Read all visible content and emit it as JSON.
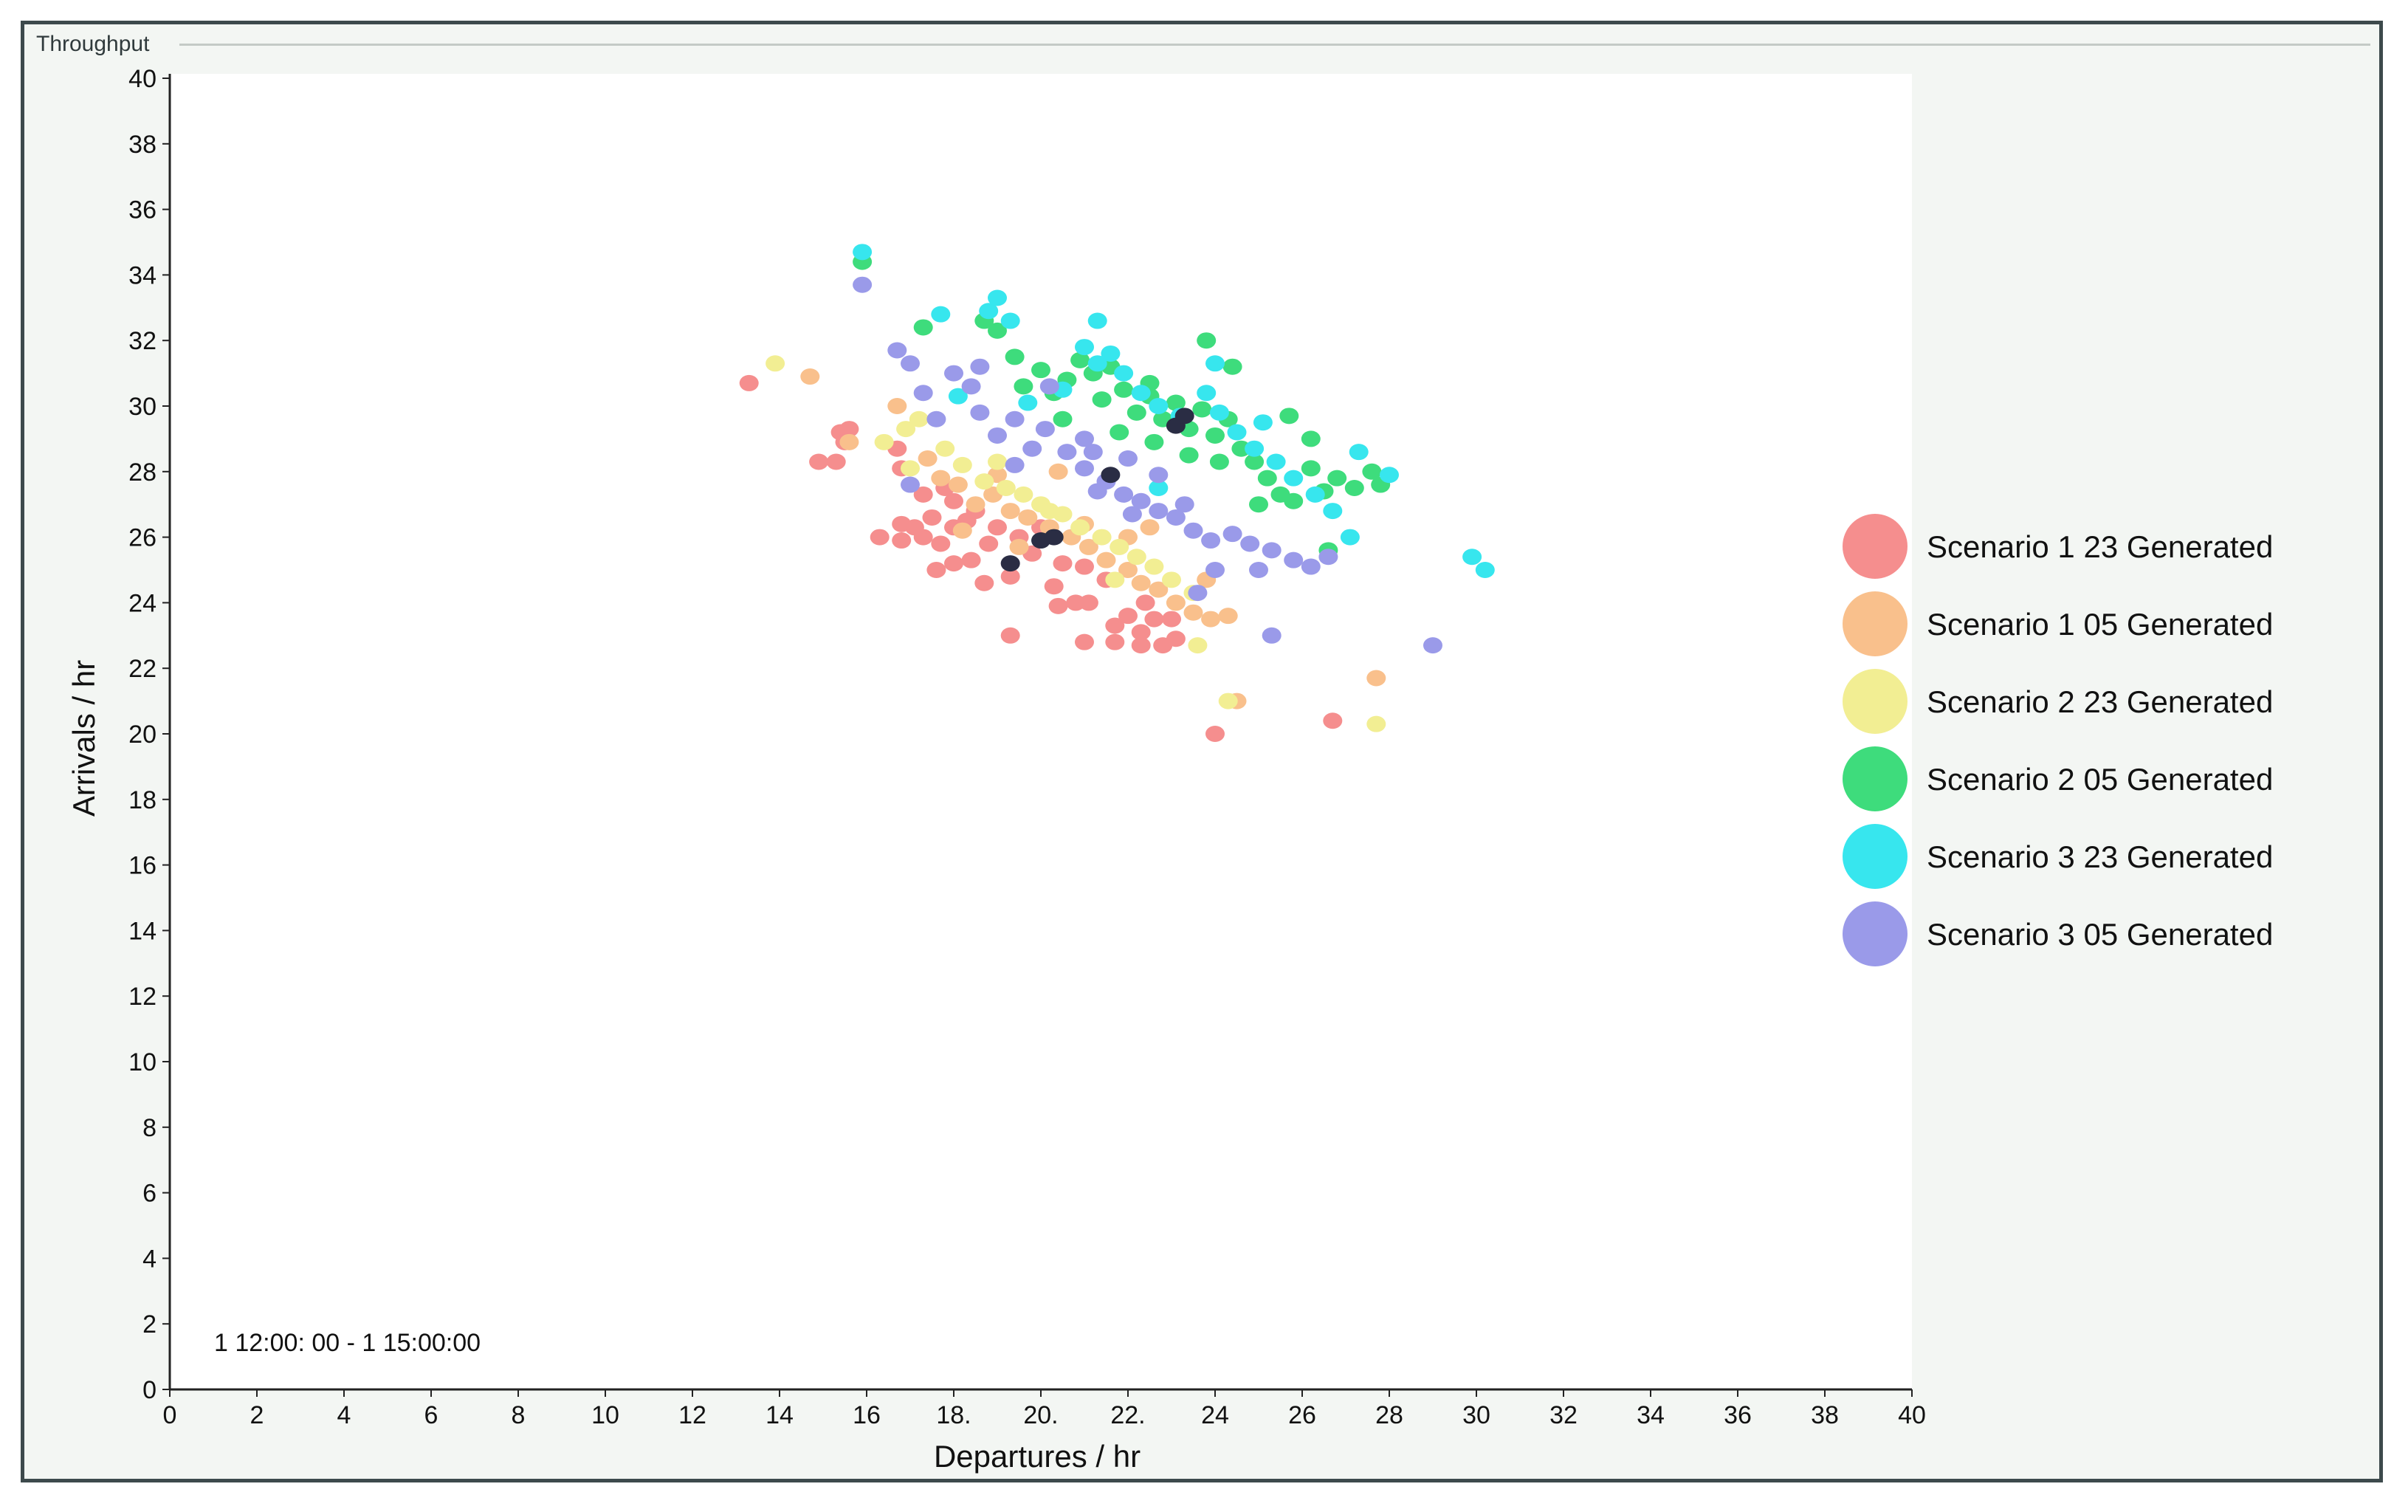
{
  "panel": {
    "title": "Throughput"
  },
  "chart_data": {
    "type": "scatter",
    "xlabel": "Departures / hr",
    "ylabel": "Arrivals / hr",
    "xlim": [
      0,
      40
    ],
    "ylim": [
      0,
      40
    ],
    "xticks": [
      0,
      2,
      4,
      6,
      8,
      10,
      12,
      14,
      16,
      18,
      20,
      22,
      24,
      26,
      28,
      30,
      32,
      34,
      36,
      38,
      40
    ],
    "xtick_labels": [
      "0",
      "2",
      "4",
      "6",
      "8",
      "10",
      "12",
      "14",
      "16",
      "18.",
      "20.",
      "22.",
      "24",
      "26",
      "28",
      "30",
      "32",
      "34",
      "36",
      "38",
      "40"
    ],
    "yticks": [
      0,
      2,
      4,
      6,
      8,
      10,
      12,
      14,
      16,
      18,
      20,
      22,
      24,
      26,
      28,
      30,
      32,
      34,
      36,
      38,
      40
    ],
    "time_range_label": "1 12:00: 00 - 1 15:00:00",
    "legend_position": "right",
    "grid": false,
    "series": [
      {
        "name": "Scenario 1 23 Generated",
        "color": "#f58e8e",
        "points": [
          [
            13.3,
            30.7
          ],
          [
            14.9,
            28.3
          ],
          [
            15.3,
            28.3
          ],
          [
            15.4,
            29.2
          ],
          [
            15.5,
            28.9
          ],
          [
            15.6,
            29.3
          ],
          [
            16.7,
            28.7
          ],
          [
            16.8,
            28.1
          ],
          [
            17.3,
            27.3
          ],
          [
            17.5,
            26.6
          ],
          [
            17.1,
            26.3
          ],
          [
            16.8,
            26.4
          ],
          [
            16.3,
            26.0
          ],
          [
            16.8,
            25.9
          ],
          [
            17.3,
            26.0
          ],
          [
            17.7,
            25.8
          ],
          [
            18.0,
            26.3
          ],
          [
            18.3,
            26.5
          ],
          [
            17.6,
            25.0
          ],
          [
            18.0,
            25.2
          ],
          [
            18.4,
            25.3
          ],
          [
            18.8,
            25.8
          ],
          [
            19.3,
            24.8
          ],
          [
            19.8,
            25.5
          ],
          [
            20.3,
            24.5
          ],
          [
            20.8,
            24.0
          ],
          [
            20.4,
            23.9
          ],
          [
            21.1,
            24.0
          ],
          [
            21.5,
            24.7
          ],
          [
            21.7,
            23.3
          ],
          [
            22.0,
            23.6
          ],
          [
            22.3,
            23.1
          ],
          [
            21.7,
            22.8
          ],
          [
            22.3,
            22.7
          ],
          [
            22.8,
            22.7
          ],
          [
            23.1,
            22.9
          ],
          [
            23.0,
            23.5
          ],
          [
            22.6,
            23.5
          ],
          [
            19.3,
            23.0
          ],
          [
            21.0,
            22.8
          ],
          [
            18.5,
            26.8
          ],
          [
            19.0,
            26.3
          ],
          [
            19.5,
            26.0
          ],
          [
            20.5,
            25.2
          ],
          [
            21.0,
            25.1
          ],
          [
            18.0,
            27.1
          ],
          [
            17.8,
            27.5
          ],
          [
            18.7,
            24.6
          ],
          [
            20.0,
            26.3
          ],
          [
            22.4,
            24.0
          ],
          [
            24.0,
            20.0
          ],
          [
            26.7,
            20.4
          ]
        ]
      },
      {
        "name": "Scenario 1 05 Generated",
        "color": "#f9c08c",
        "points": [
          [
            14.7,
            30.9
          ],
          [
            15.6,
            28.9
          ],
          [
            16.7,
            30.0
          ],
          [
            17.4,
            28.4
          ],
          [
            17.7,
            27.8
          ],
          [
            18.1,
            27.6
          ],
          [
            18.5,
            27.0
          ],
          [
            18.9,
            27.3
          ],
          [
            19.3,
            26.8
          ],
          [
            19.7,
            26.6
          ],
          [
            20.2,
            26.3
          ],
          [
            20.7,
            26.0
          ],
          [
            21.1,
            25.7
          ],
          [
            21.5,
            25.3
          ],
          [
            22.0,
            25.0
          ],
          [
            22.3,
            24.6
          ],
          [
            22.7,
            24.4
          ],
          [
            23.1,
            24.0
          ],
          [
            23.5,
            23.7
          ],
          [
            23.9,
            23.5
          ],
          [
            24.3,
            23.6
          ],
          [
            24.5,
            21.0
          ],
          [
            23.8,
            24.7
          ],
          [
            20.4,
            28.0
          ],
          [
            19.0,
            27.9
          ],
          [
            18.2,
            26.2
          ],
          [
            19.5,
            25.7
          ],
          [
            22.0,
            26.0
          ],
          [
            22.5,
            26.3
          ],
          [
            21.0,
            26.4
          ],
          [
            27.7,
            21.7
          ]
        ]
      },
      {
        "name": "Scenario 2 23 Generated",
        "color": "#f2ee93",
        "points": [
          [
            13.9,
            31.3
          ],
          [
            16.4,
            28.9
          ],
          [
            16.9,
            29.3
          ],
          [
            17.2,
            29.6
          ],
          [
            17.8,
            28.7
          ],
          [
            18.2,
            28.2
          ],
          [
            18.7,
            27.7
          ],
          [
            19.2,
            27.5
          ],
          [
            19.6,
            27.3
          ],
          [
            20.0,
            27.0
          ],
          [
            20.5,
            26.7
          ],
          [
            20.9,
            26.3
          ],
          [
            21.4,
            26.0
          ],
          [
            21.8,
            25.7
          ],
          [
            22.2,
            25.4
          ],
          [
            22.6,
            25.1
          ],
          [
            23.0,
            24.7
          ],
          [
            23.5,
            24.3
          ],
          [
            23.6,
            22.7
          ],
          [
            24.3,
            21.0
          ],
          [
            17.0,
            28.1
          ],
          [
            20.2,
            26.8
          ],
          [
            21.7,
            24.7
          ],
          [
            19.0,
            28.3
          ],
          [
            27.7,
            20.3
          ]
        ]
      },
      {
        "name": "Scenario 2 05 Generated",
        "color": "#3edc7c",
        "points": [
          [
            15.9,
            34.4
          ],
          [
            17.3,
            32.4
          ],
          [
            18.7,
            32.6
          ],
          [
            19.0,
            32.3
          ],
          [
            19.4,
            31.5
          ],
          [
            19.6,
            30.6
          ],
          [
            20.0,
            31.1
          ],
          [
            20.3,
            30.4
          ],
          [
            20.6,
            30.8
          ],
          [
            20.9,
            31.4
          ],
          [
            21.2,
            31.0
          ],
          [
            21.4,
            30.2
          ],
          [
            21.6,
            31.2
          ],
          [
            21.9,
            30.5
          ],
          [
            22.2,
            29.8
          ],
          [
            22.5,
            30.3
          ],
          [
            22.8,
            29.6
          ],
          [
            23.1,
            30.1
          ],
          [
            23.4,
            29.3
          ],
          [
            23.7,
            29.9
          ],
          [
            24.0,
            29.1
          ],
          [
            24.3,
            29.6
          ],
          [
            24.6,
            28.7
          ],
          [
            24.9,
            28.3
          ],
          [
            25.2,
            27.8
          ],
          [
            25.5,
            27.3
          ],
          [
            25.8,
            27.1
          ],
          [
            26.2,
            28.1
          ],
          [
            26.5,
            27.4
          ],
          [
            26.8,
            27.8
          ],
          [
            27.2,
            27.5
          ],
          [
            27.6,
            28.0
          ],
          [
            27.8,
            27.6
          ],
          [
            26.2,
            29.0
          ],
          [
            25.7,
            29.7
          ],
          [
            26.6,
            25.6
          ],
          [
            24.4,
            31.2
          ],
          [
            23.8,
            32.0
          ],
          [
            22.5,
            30.7
          ],
          [
            21.8,
            29.2
          ],
          [
            22.6,
            28.9
          ],
          [
            23.4,
            28.5
          ],
          [
            24.1,
            28.3
          ],
          [
            25.0,
            27.0
          ],
          [
            20.5,
            29.6
          ]
        ]
      },
      {
        "name": "Scenario 3 23 Generated",
        "color": "#37e6ee",
        "points": [
          [
            15.9,
            34.7
          ],
          [
            17.7,
            32.8
          ],
          [
            18.8,
            32.9
          ],
          [
            19.0,
            33.3
          ],
          [
            19.3,
            32.6
          ],
          [
            21.3,
            32.6
          ],
          [
            21.0,
            31.8
          ],
          [
            21.3,
            31.3
          ],
          [
            21.6,
            31.6
          ],
          [
            21.9,
            31.0
          ],
          [
            20.5,
            30.5
          ],
          [
            19.7,
            30.1
          ],
          [
            22.3,
            30.4
          ],
          [
            22.7,
            30.0
          ],
          [
            23.2,
            29.7
          ],
          [
            23.8,
            30.4
          ],
          [
            24.1,
            29.8
          ],
          [
            24.5,
            29.2
          ],
          [
            24.9,
            28.7
          ],
          [
            25.4,
            28.3
          ],
          [
            25.8,
            27.8
          ],
          [
            26.3,
            27.3
          ],
          [
            26.7,
            26.8
          ],
          [
            27.1,
            26.0
          ],
          [
            27.3,
            28.6
          ],
          [
            28.0,
            27.9
          ],
          [
            29.9,
            25.4
          ],
          [
            30.2,
            25.0
          ],
          [
            25.1,
            29.5
          ],
          [
            24.0,
            31.3
          ],
          [
            18.1,
            30.3
          ],
          [
            22.7,
            27.5
          ]
        ]
      },
      {
        "name": "Scenario 3 05 Generated",
        "color": "#9a9ae9",
        "points": [
          [
            15.9,
            33.7
          ],
          [
            16.7,
            31.7
          ],
          [
            17.0,
            31.3
          ],
          [
            17.3,
            30.4
          ],
          [
            17.6,
            29.6
          ],
          [
            18.0,
            31.0
          ],
          [
            18.4,
            30.6
          ],
          [
            18.6,
            31.2
          ],
          [
            18.6,
            29.8
          ],
          [
            19.0,
            29.1
          ],
          [
            19.4,
            29.6
          ],
          [
            19.8,
            28.7
          ],
          [
            20.1,
            29.3
          ],
          [
            20.6,
            28.6
          ],
          [
            21.0,
            28.1
          ],
          [
            21.5,
            27.7
          ],
          [
            21.9,
            27.3
          ],
          [
            22.3,
            27.1
          ],
          [
            22.7,
            26.8
          ],
          [
            23.1,
            26.6
          ],
          [
            23.5,
            26.2
          ],
          [
            23.9,
            25.9
          ],
          [
            24.4,
            26.1
          ],
          [
            24.8,
            25.8
          ],
          [
            25.3,
            25.6
          ],
          [
            25.8,
            25.3
          ],
          [
            26.2,
            25.1
          ],
          [
            26.6,
            25.4
          ],
          [
            24.0,
            25.0
          ],
          [
            25.0,
            25.0
          ],
          [
            25.3,
            23.0
          ],
          [
            29.0,
            22.7
          ],
          [
            23.6,
            24.3
          ],
          [
            22.0,
            28.4
          ],
          [
            22.7,
            27.9
          ],
          [
            21.2,
            28.6
          ],
          [
            20.2,
            30.6
          ],
          [
            21.3,
            27.4
          ],
          [
            23.3,
            27.0
          ],
          [
            22.1,
            26.7
          ],
          [
            21.0,
            29.0
          ],
          [
            19.4,
            28.2
          ],
          [
            17.0,
            27.6
          ]
        ]
      },
      {
        "name": "",
        "color": "#2a2d44",
        "points": [
          [
            19.3,
            25.2
          ],
          [
            20.0,
            25.9
          ],
          [
            20.3,
            26.0
          ],
          [
            21.6,
            27.9
          ],
          [
            23.1,
            29.4
          ],
          [
            23.3,
            29.7
          ]
        ]
      }
    ]
  }
}
